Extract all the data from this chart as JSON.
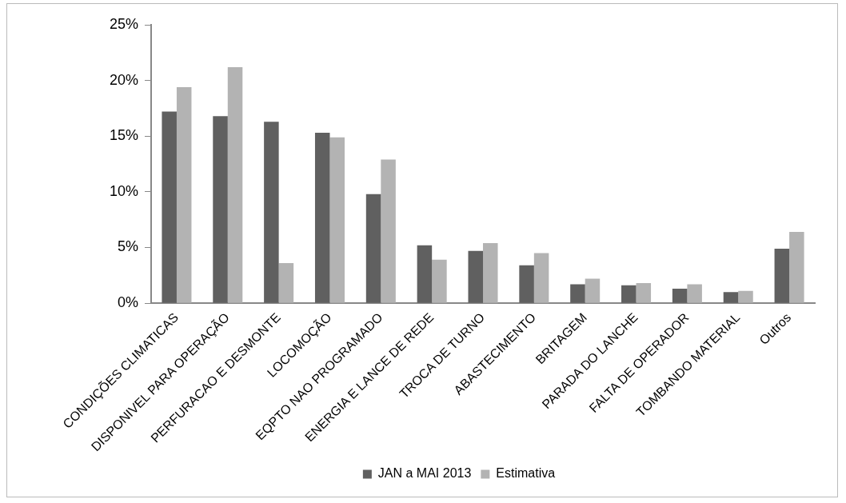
{
  "chart_data": {
    "type": "bar",
    "categories": [
      "CONDIÇÕES CLIMATICAS",
      "DISPONIVEL PARA OPERAÇÃO",
      "PERFURACAO E DESMONTE",
      "LOCOMOÇÃO",
      "EQPTO NAO PROGRAMADO",
      "ENERGIA E LANCE DE REDE",
      "TROCA DE TURNO",
      "ABASTECIMENTO",
      "BRITAGEM",
      "PARADA DO LANCHE",
      "FALTA DE OPERADOR",
      "TOMBANDO MATERIAL",
      "Outros"
    ],
    "series": [
      {
        "name": "JAN a MAI 2013",
        "color": "#606060",
        "values": [
          17.2,
          16.8,
          16.3,
          15.3,
          9.8,
          5.2,
          4.7,
          3.4,
          1.7,
          1.6,
          1.3,
          1.0,
          4.9
        ]
      },
      {
        "name": "Estimativa",
        "color": "#b3b3b3",
        "values": [
          19.4,
          21.2,
          3.6,
          14.9,
          12.9,
          3.9,
          5.4,
          4.5,
          2.2,
          1.8,
          1.7,
          1.1,
          6.4
        ]
      }
    ],
    "ylim": [
      0,
      25
    ],
    "yticks": [
      {
        "value": 0,
        "label": "0%"
      },
      {
        "value": 5,
        "label": "5%"
      },
      {
        "value": 10,
        "label": "10%"
      },
      {
        "value": 15,
        "label": "15%"
      },
      {
        "value": 20,
        "label": "20%"
      },
      {
        "value": 25,
        "label": "25%"
      }
    ],
    "grid": false,
    "legend": "bottom"
  }
}
